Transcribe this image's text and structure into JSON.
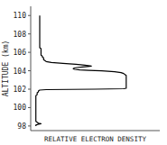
{
  "chart_data": {
    "type": "line",
    "xlabel": "RELATIVE ELECTRON DENSITY",
    "ylabel": "ALTITUDE (km)",
    "x": [
      0.04,
      0.04,
      0.05,
      0.06,
      0.08,
      0.06,
      0.05,
      0.04,
      0.04,
      0.04,
      0.04,
      0.04,
      0.04,
      0.04,
      0.04,
      0.04,
      0.04,
      0.04,
      0.04,
      0.04,
      0.04,
      0.04,
      0.04,
      0.04,
      0.04,
      0.04,
      0.04,
      0.04,
      0.04,
      0.04,
      0.04,
      0.04,
      0.04,
      0.04,
      0.04,
      0.04,
      0.05,
      0.05,
      0.05,
      0.06,
      0.06,
      0.07,
      0.12,
      0.5,
      0.72,
      0.74,
      0.74,
      0.74,
      0.74,
      0.74,
      0.74,
      0.74,
      0.74,
      0.74,
      0.74,
      0.74,
      0.74,
      0.74,
      0.74,
      0.74,
      0.74,
      0.74,
      0.74,
      0.73,
      0.72,
      0.7,
      0.65,
      0.55,
      0.45,
      0.38,
      0.34,
      0.33,
      0.33,
      0.34,
      0.36,
      0.4,
      0.44,
      0.47,
      0.42,
      0.35,
      0.25,
      0.16,
      0.12,
      0.11,
      0.1,
      0.1,
      0.1,
      0.09,
      0.09,
      0.08,
      0.08,
      0.08,
      0.08,
      0.08,
      0.08,
      0.08,
      0.08,
      0.07,
      0.07,
      0.07,
      0.07,
      0.07,
      0.07,
      0.07,
      0.07,
      0.07,
      0.07,
      0.07,
      0.07,
      0.07,
      0.07,
      0.07,
      0.07,
      0.07,
      0.07,
      0.07,
      0.07,
      0.07
    ],
    "values": [
      98.0,
      98.1,
      98.15,
      98.2,
      98.25,
      98.3,
      98.4,
      98.5,
      98.6,
      98.7,
      98.8,
      98.9,
      99.0,
      99.1,
      99.2,
      99.3,
      99.4,
      99.5,
      99.6,
      99.7,
      99.8,
      99.9,
      100.0,
      100.1,
      100.2,
      100.3,
      100.4,
      100.5,
      100.6,
      100.7,
      100.8,
      100.9,
      101.0,
      101.1,
      101.2,
      101.3,
      101.4,
      101.5,
      101.6,
      101.7,
      101.8,
      101.9,
      101.95,
      102.0,
      102.05,
      102.1,
      102.15,
      102.2,
      102.25,
      102.3,
      102.35,
      102.4,
      102.5,
      102.6,
      102.7,
      102.8,
      102.9,
      103.0,
      103.1,
      103.2,
      103.3,
      103.4,
      103.5,
      103.6,
      103.7,
      103.8,
      103.9,
      104.0,
      104.05,
      104.1,
      104.15,
      104.2,
      104.25,
      104.3,
      104.35,
      104.4,
      104.45,
      104.5,
      104.6,
      104.7,
      104.8,
      104.9,
      105.0,
      105.1,
      105.2,
      105.3,
      105.4,
      105.5,
      105.6,
      105.7,
      105.8,
      105.9,
      106.0,
      106.1,
      106.2,
      106.3,
      106.4,
      106.5,
      106.6,
      106.7,
      106.8,
      106.9,
      107.0,
      107.2,
      107.4,
      107.6,
      107.8,
      108.0,
      108.2,
      108.4,
      108.6,
      108.8,
      109.0,
      109.2,
      109.4,
      109.6,
      109.8,
      110.0
    ],
    "color": "#000000",
    "xlim": [
      0,
      1.0
    ],
    "xticks": [],
    "ylim": [
      97.5,
      111.0
    ],
    "yticks": [
      98,
      100,
      102,
      104,
      106,
      108,
      110
    ],
    "tick_labels": "y"
  }
}
